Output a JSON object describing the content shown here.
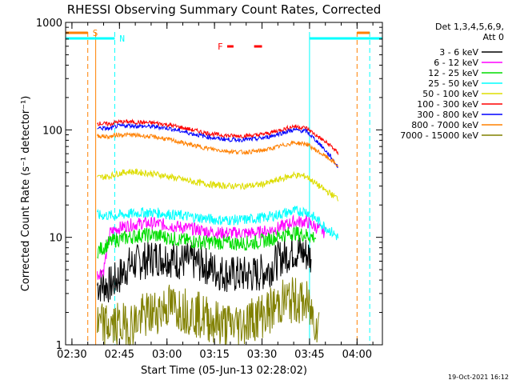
{
  "chart_data": {
    "type": "line",
    "title": "RHESSI Observing Summary Count Rates, Corrected",
    "xlabel": "Start Time (05-Jun-13 02:28:02)",
    "ylabel": "Corrected Count Rate (s⁻¹ detector⁻¹)",
    "x_ticks": [
      "02:30",
      "02:45",
      "03:00",
      "03:15",
      "03:30",
      "03:45",
      "04:00"
    ],
    "x_ticks_min": [
      2,
      17,
      32,
      47,
      62,
      77,
      92
    ],
    "xlim_min": [
      0,
      100
    ],
    "y_scale": "log",
    "ylim": [
      1,
      1000
    ],
    "y_ticks": [
      "1",
      "10",
      "100",
      "1000"
    ],
    "y_ticks_val": [
      1,
      10,
      100,
      1000
    ],
    "legend_title": [
      "Det 1,3,4,5,6,9,",
      "Att 0"
    ],
    "series": [
      {
        "name": "3 - 6 keV",
        "color": "#000000",
        "x": [
          10,
          14,
          16,
          20,
          24,
          28,
          32,
          36,
          40,
          44,
          48,
          52,
          56,
          60,
          64,
          68,
          72,
          76,
          77.5
        ],
        "y": [
          3.6,
          3.6,
          4.0,
          5.5,
          6.0,
          6.5,
          6.5,
          6.0,
          6.0,
          5.5,
          4.8,
          4.5,
          4.5,
          4.5,
          5.0,
          6.5,
          7.5,
          7.0,
          6.5
        ],
        "noise": 0.18
      },
      {
        "name": "6 - 12 keV",
        "color": "#ff00ff",
        "x": [
          10,
          12,
          14,
          16,
          20,
          24,
          28,
          32,
          36,
          40,
          44,
          48,
          52,
          56,
          60,
          64,
          68,
          72,
          76,
          80,
          82
        ],
        "y": [
          4.5,
          5.0,
          11,
          12,
          13,
          13.5,
          13.5,
          13,
          12.5,
          12,
          11.5,
          11,
          11,
          11,
          11,
          11.5,
          12.5,
          14,
          14,
          12,
          11
        ],
        "noise": 0.06
      },
      {
        "name": "12 - 25 keV",
        "color": "#00dd00",
        "x": [
          10,
          12,
          14,
          16,
          20,
          24,
          28,
          32,
          36,
          40,
          44,
          48,
          52,
          56,
          60,
          64,
          68,
          72,
          76,
          79
        ],
        "y": [
          7.5,
          8,
          9,
          9.5,
          10,
          10.5,
          10.5,
          10,
          9.5,
          9.2,
          9,
          9,
          8.8,
          8.8,
          9,
          9.5,
          10.5,
          11,
          10.5,
          10
        ],
        "noise": 0.07
      },
      {
        "name": "25 - 50 keV",
        "color": "#00ffff",
        "x": [
          10,
          14,
          16,
          20,
          24,
          28,
          32,
          36,
          40,
          44,
          48,
          52,
          56,
          60,
          64,
          68,
          72,
          76,
          80,
          86
        ],
        "y": [
          16,
          16,
          16,
          16.5,
          17,
          17,
          16.5,
          16,
          15.5,
          15,
          14.5,
          14.5,
          14.5,
          15,
          15.5,
          16.5,
          17.5,
          17.5,
          14,
          10
        ],
        "noise": 0.05
      },
      {
        "name": "50 - 100 keV",
        "color": "#dddd00",
        "x": [
          10,
          14,
          16,
          20,
          24,
          28,
          32,
          36,
          40,
          44,
          48,
          52,
          56,
          60,
          64,
          68,
          72,
          76,
          80,
          84,
          86
        ],
        "y": [
          36,
          37,
          39,
          41,
          40,
          39,
          37,
          35,
          33,
          31.5,
          30.5,
          30,
          30,
          30.5,
          32,
          35,
          38,
          37,
          30,
          25,
          23
        ],
        "noise": 0.03
      },
      {
        "name": "100 - 300 keV",
        "color": "#ff0000",
        "x": [
          10,
          14,
          16,
          20,
          24,
          28,
          32,
          36,
          40,
          44,
          48,
          52,
          56,
          60,
          64,
          68,
          72,
          76,
          80,
          84,
          86
        ],
        "y": [
          115,
          113,
          118,
          119,
          117,
          116,
          112,
          106,
          100,
          94,
          90,
          88,
          88,
          89,
          93,
          100,
          108,
          104,
          85,
          70,
          60
        ],
        "noise": 0.02
      },
      {
        "name": "300 - 800 keV",
        "color": "#0000ff",
        "x": [
          10,
          14,
          16,
          20,
          24,
          28,
          32,
          36,
          40,
          44,
          48,
          52,
          56,
          60,
          64,
          68,
          72,
          76,
          80,
          84,
          86
        ],
        "y": [
          105,
          102,
          108,
          110,
          108,
          107,
          104,
          98,
          92,
          87,
          83,
          81,
          81,
          82,
          86,
          93,
          100,
          97,
          75,
          55,
          45
        ],
        "noise": 0.02
      },
      {
        "name": "800 - 7000 keV",
        "color": "#ff8000",
        "x": [
          10,
          14,
          16,
          20,
          24,
          28,
          32,
          36,
          40,
          44,
          48,
          52,
          56,
          60,
          64,
          68,
          72,
          76,
          80,
          84,
          86
        ],
        "y": [
          88,
          86,
          90,
          90,
          88,
          86,
          82,
          77,
          72,
          68,
          65,
          63,
          62,
          63,
          66,
          71,
          76,
          74,
          62,
          52,
          46
        ],
        "noise": 0.02
      },
      {
        "name": "7000 - 15000 keV",
        "color": "#808000",
        "x": [
          10,
          14,
          16,
          20,
          24,
          28,
          32,
          36,
          40,
          44,
          48,
          52,
          56,
          60,
          64,
          68,
          72,
          76,
          80
        ],
        "y": [
          1.5,
          1.5,
          1.5,
          1.5,
          1.8,
          2.0,
          2.3,
          2.2,
          2.0,
          1.8,
          1.6,
          1.5,
          1.6,
          1.8,
          2.0,
          2.5,
          2.6,
          2.4,
          1.5
        ],
        "noise": 0.22
      }
    ],
    "attenuator_bar": {
      "label": "S",
      "color": "#ff8000",
      "segments": [
        [
          0,
          7
        ],
        [
          92,
          96
        ]
      ]
    },
    "night_bar": {
      "label": "N",
      "color": "#00ffff",
      "segments": [
        [
          0,
          15.5
        ],
        [
          77,
          100
        ]
      ]
    },
    "flare_bar": {
      "label": "F",
      "color": "#ff0000",
      "segments": [
        [
          51,
          53
        ],
        [
          59.5,
          62
        ]
      ]
    },
    "vertical_lines": [
      {
        "x": 7,
        "color": "#ff8000",
        "style": "dashed"
      },
      {
        "x": 9.5,
        "color": "#ff8000",
        "style": "solid"
      },
      {
        "x": 15.5,
        "color": "#00ffff",
        "style": "dashed"
      },
      {
        "x": 77,
        "color": "#00ffff",
        "style": "solid"
      },
      {
        "x": 92,
        "color": "#ff8000",
        "style": "dashed"
      },
      {
        "x": 96,
        "color": "#00ffff",
        "style": "dashed"
      }
    ],
    "grid": false,
    "legend_position": "right"
  },
  "footer": {
    "timestamp": "19-Oct-2021 16:12"
  }
}
